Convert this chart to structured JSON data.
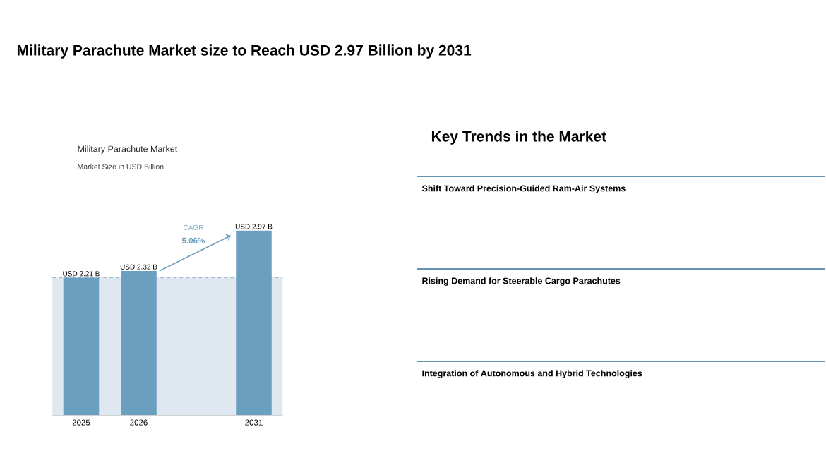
{
  "chart_data": [
    {
      "type": "bar",
      "title": "Military Parachute Market",
      "subtitle": "Market Size in USD Billion",
      "categories": [
        "2025",
        "2026",
        null,
        "2031"
      ],
      "values": [
        2.21,
        2.32,
        null,
        2.97
      ],
      "value_labels": [
        "USD 2.21 B",
        "USD 2.32 B",
        null,
        "USD 2.97 B"
      ],
      "color": "#6a9fc0",
      "bands": [
        {
          "axis": "y",
          "from": 0,
          "to": 2.21,
          "color": "#dfe8f0"
        }
      ],
      "ref_lines": [
        {
          "axis": "y",
          "value": 2.21,
          "color": "#7fa6c8",
          "line_style": "dashed"
        }
      ],
      "annotations": [
        "Military Parachute Market size to Reach USD 2.97 Billion by 2031",
        "CAGR",
        "5.06%"
      ]
    },
    {
      "type": "other",
      "title": "Key Trends in the Market",
      "annotations": [
        "Shift Toward Precision-Guided Ram-Air Systems",
        "Rising Demand for Steerable Cargo Parachutes",
        "Integration of Autonomous and Hybrid Technologies"
      ]
    }
  ]
}
